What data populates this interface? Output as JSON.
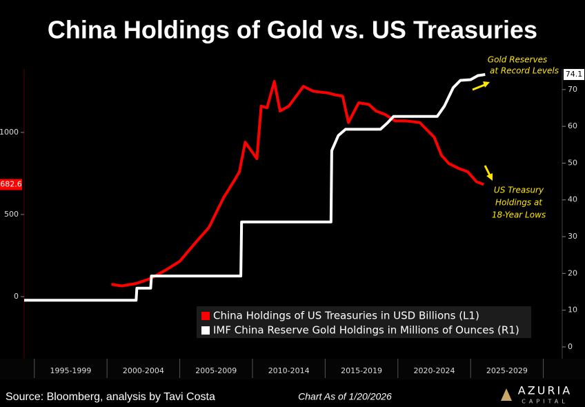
{
  "chart_data": {
    "type": "line",
    "title": "China Holdings of Gold vs. US Treasuries",
    "categories": [
      "1995-1999",
      "2000-2004",
      "2005-2009",
      "2010-2014",
      "2015-2019",
      "2020-2024",
      "2025-2029"
    ],
    "category_bounds": [
      1995,
      2000,
      2005,
      2010,
      2015,
      2020,
      2025,
      2030
    ],
    "xlim": [
      1994.3,
      2031.3
    ],
    "ylim": [
      -378,
      1386
    ],
    "yticks": [
      0,
      500,
      1000
    ],
    "y2lim": [
      -3.2,
      75.6
    ],
    "y2ticks": [
      0,
      10,
      20,
      30,
      40,
      50,
      60,
      70
    ],
    "series": [
      {
        "name": "China Holdings of US Treasuries in USD Billions (L1)",
        "color": "#ff0000",
        "axis": "y",
        "last_label": 682.6,
        "x": [
          2000.3,
          2001,
          2002,
          2003,
          2004,
          2005,
          2006,
          2007,
          2008,
          2008.7,
          2009.1,
          2009.5,
          2009.9,
          2010.3,
          2010.6,
          2011,
          2011.5,
          2011.9,
          2012.5,
          2013.5,
          2014.2,
          2015.2,
          2015.6,
          2016.2,
          2016.6,
          2017.3,
          2018,
          2018.5,
          2019.1,
          2019.8,
          2020.5,
          2021.5,
          2022.5,
          2023,
          2023.5,
          2024.2,
          2024.8,
          2025.4,
          2025.9
        ],
        "values": [
          75,
          65,
          80,
          110,
          160,
          215,
          320,
          420,
          600,
          700,
          760,
          940,
          890,
          840,
          1160,
          1150,
          1310,
          1130,
          1160,
          1280,
          1250,
          1240,
          1230,
          1220,
          1060,
          1180,
          1170,
          1130,
          1110,
          1070,
          1070,
          1060,
          970,
          860,
          810,
          780,
          760,
          700,
          682.6
        ]
      },
      {
        "name": "IMF China Reserve Gold Holdings in Millions of Ounces (R1)",
        "color": "#ffffff",
        "axis": "y2",
        "last_label": 74.1,
        "x": [
          1994.3,
          2002.0,
          2002.05,
          2003.0,
          2003.05,
          2009.2,
          2009.25,
          2015.4,
          2015.45,
          2015.9,
          2016.4,
          2018.8,
          2019.3,
          2019.7,
          2022.7,
          2023.2,
          2023.8,
          2024.3,
          2025.0,
          2025.5,
          2026.0
        ],
        "values": [
          12.7,
          12.7,
          16.0,
          16.0,
          19.3,
          19.3,
          34.0,
          34.0,
          53.4,
          57.5,
          59.2,
          59.2,
          61.0,
          62.7,
          62.7,
          65.5,
          70.5,
          72.5,
          72.7,
          73.8,
          74.1
        ]
      }
    ],
    "annotations": [
      {
        "lines": [
          "Gold Reserves",
          "at Record Levels"
        ]
      },
      {
        "lines": [
          "US Treasury",
          "Holdings at",
          "18-Year Lows"
        ]
      }
    ],
    "source": "Source: Bloomberg, analysis by Tavi Costa",
    "as_of": "Chart As of 1/20/2026",
    "brand": "AZURIA",
    "brand_sub": "CAPITAL"
  }
}
